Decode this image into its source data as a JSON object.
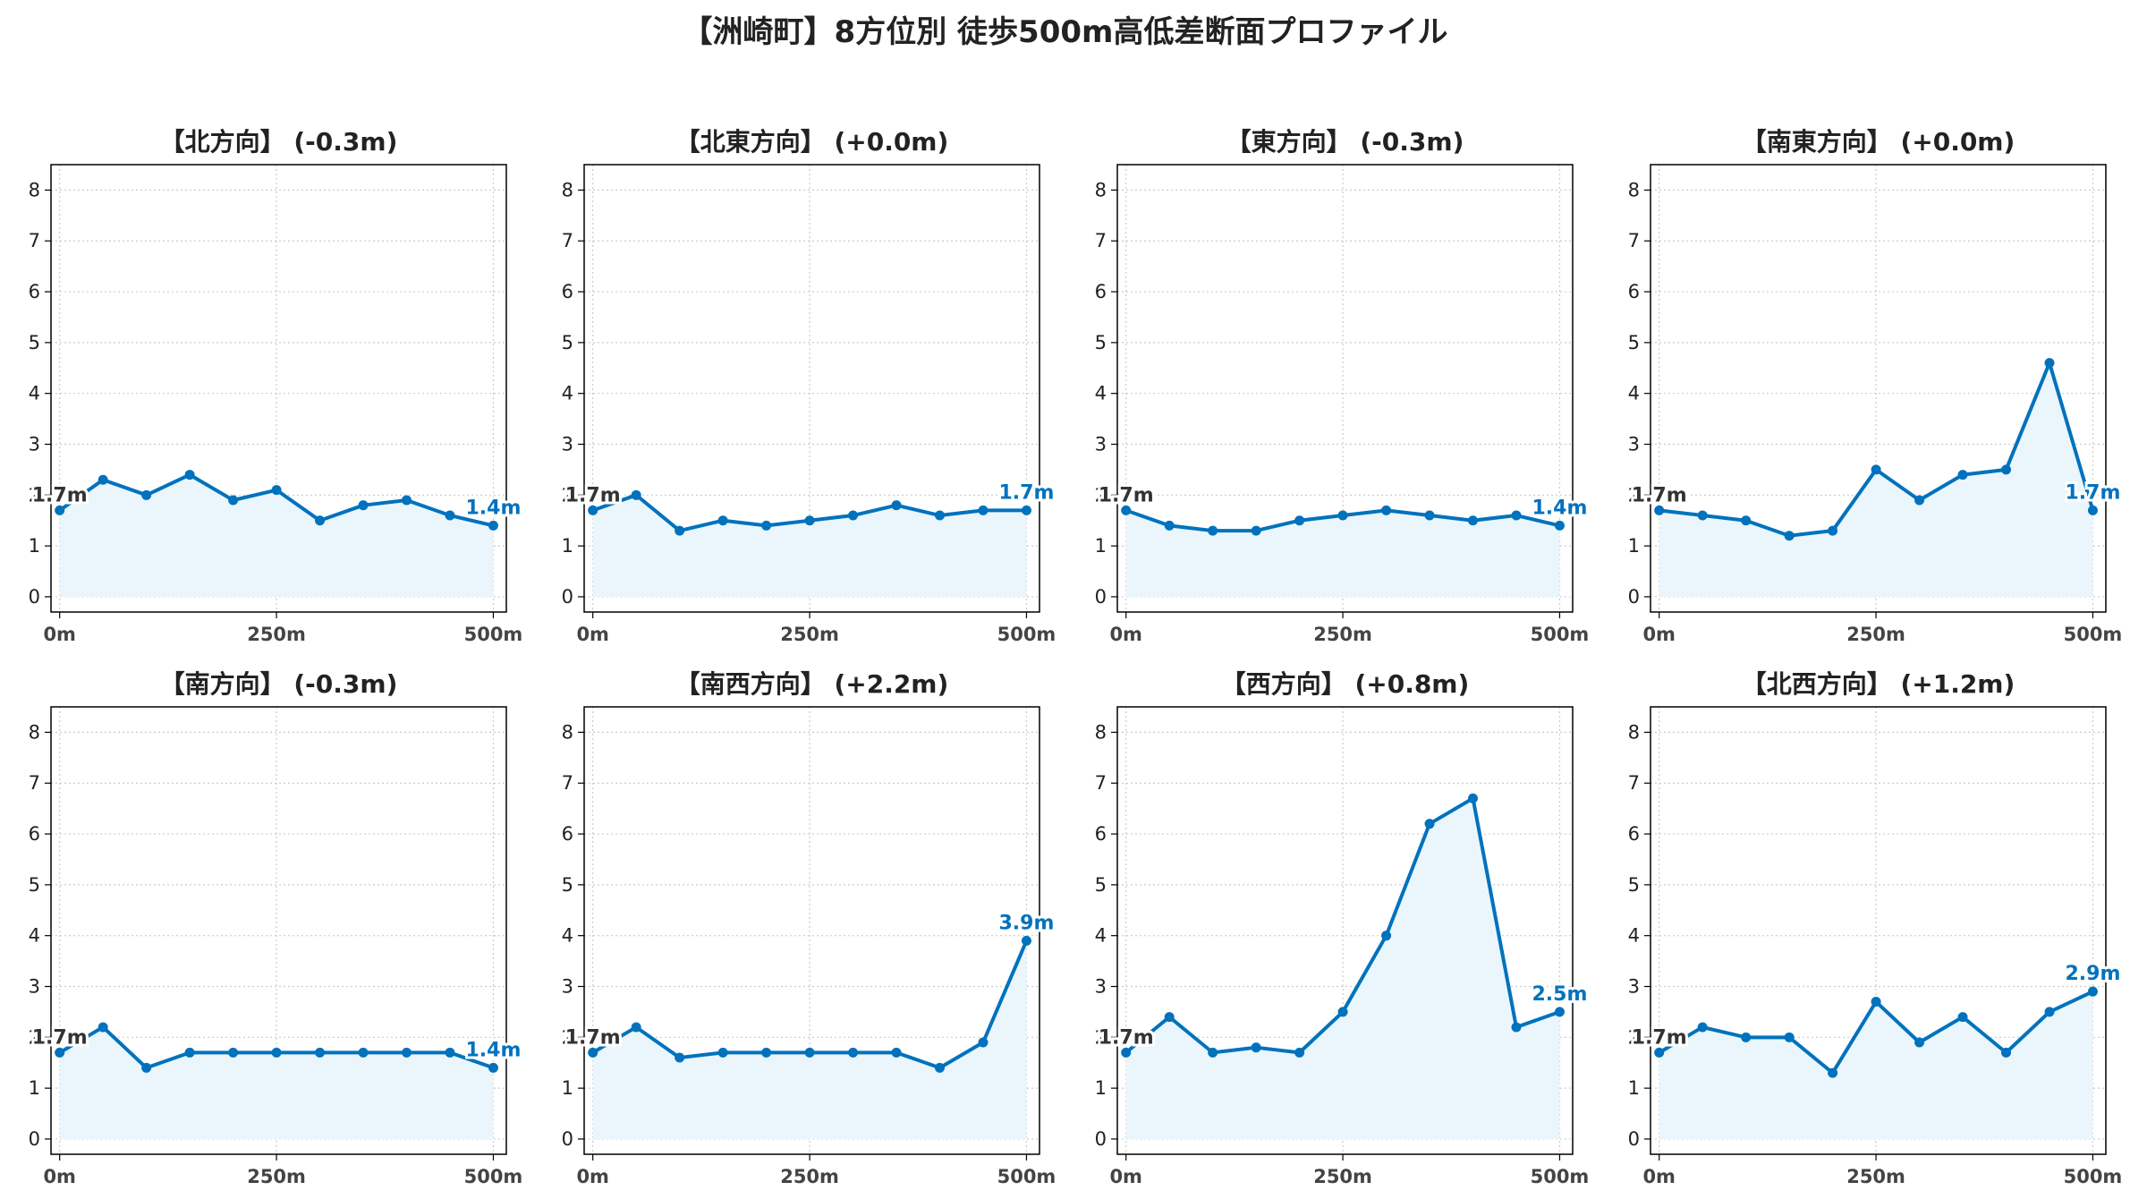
{
  "title": "【洲崎町】8方位別 徒歩500m高低差断面プロファイル",
  "colors": {
    "line": "#0072BD",
    "fill": "#EAF6FC",
    "grid": "#cccccc",
    "start_label": "#333333",
    "end_label": "#0072BD"
  },
  "chart_data": [
    {
      "type": "area",
      "title": "【北方向】 (-0.3m)",
      "x": [
        0,
        50,
        100,
        150,
        200,
        250,
        300,
        350,
        400,
        450,
        500
      ],
      "values": [
        1.7,
        2.3,
        2.0,
        2.4,
        1.9,
        2.1,
        1.5,
        1.8,
        1.9,
        1.6,
        1.4
      ],
      "xticks": [
        0,
        250,
        500
      ],
      "xtick_labels": [
        "0m",
        "250m",
        "500m"
      ],
      "yticks": [
        0,
        1,
        2,
        3,
        4,
        5,
        6,
        7,
        8
      ],
      "ylim": [
        -0.3,
        8.5
      ],
      "xlim": [
        -10,
        515
      ],
      "grid": true,
      "start_label": "1.7m",
      "end_label": "1.4m"
    },
    {
      "type": "area",
      "title": "【北東方向】 (+0.0m)",
      "x": [
        0,
        50,
        100,
        150,
        200,
        250,
        300,
        350,
        400,
        450,
        500
      ],
      "values": [
        1.7,
        2.0,
        1.3,
        1.5,
        1.4,
        1.5,
        1.6,
        1.8,
        1.6,
        1.7,
        1.7
      ],
      "xticks": [
        0,
        250,
        500
      ],
      "xtick_labels": [
        "0m",
        "250m",
        "500m"
      ],
      "yticks": [
        0,
        1,
        2,
        3,
        4,
        5,
        6,
        7,
        8
      ],
      "ylim": [
        -0.3,
        8.5
      ],
      "xlim": [
        -10,
        515
      ],
      "grid": true,
      "start_label": "1.7m",
      "end_label": "1.7m"
    },
    {
      "type": "area",
      "title": "【東方向】 (-0.3m)",
      "x": [
        0,
        50,
        100,
        150,
        200,
        250,
        300,
        350,
        400,
        450,
        500
      ],
      "values": [
        1.7,
        1.4,
        1.3,
        1.3,
        1.5,
        1.6,
        1.7,
        1.6,
        1.5,
        1.6,
        1.4
      ],
      "xticks": [
        0,
        250,
        500
      ],
      "xtick_labels": [
        "0m",
        "250m",
        "500m"
      ],
      "yticks": [
        0,
        1,
        2,
        3,
        4,
        5,
        6,
        7,
        8
      ],
      "ylim": [
        -0.3,
        8.5
      ],
      "xlim": [
        -10,
        515
      ],
      "grid": true,
      "start_label": "1.7m",
      "end_label": "1.4m"
    },
    {
      "type": "area",
      "title": "【南東方向】 (+0.0m)",
      "x": [
        0,
        50,
        100,
        150,
        200,
        250,
        300,
        350,
        400,
        450,
        500
      ],
      "values": [
        1.7,
        1.6,
        1.5,
        1.2,
        1.3,
        2.5,
        1.9,
        2.4,
        2.5,
        4.6,
        1.7
      ],
      "xticks": [
        0,
        250,
        500
      ],
      "xtick_labels": [
        "0m",
        "250m",
        "500m"
      ],
      "yticks": [
        0,
        1,
        2,
        3,
        4,
        5,
        6,
        7,
        8
      ],
      "ylim": [
        -0.3,
        8.5
      ],
      "xlim": [
        -10,
        515
      ],
      "grid": true,
      "start_label": "1.7m",
      "end_label": "1.7m"
    },
    {
      "type": "area",
      "title": "【南方向】 (-0.3m)",
      "x": [
        0,
        50,
        100,
        150,
        200,
        250,
        300,
        350,
        400,
        450,
        500
      ],
      "values": [
        1.7,
        2.2,
        1.4,
        1.7,
        1.7,
        1.7,
        1.7,
        1.7,
        1.7,
        1.7,
        1.4
      ],
      "xticks": [
        0,
        250,
        500
      ],
      "xtick_labels": [
        "0m",
        "250m",
        "500m"
      ],
      "yticks": [
        0,
        1,
        2,
        3,
        4,
        5,
        6,
        7,
        8
      ],
      "ylim": [
        -0.3,
        8.5
      ],
      "xlim": [
        -10,
        515
      ],
      "grid": true,
      "start_label": "1.7m",
      "end_label": "1.4m"
    },
    {
      "type": "area",
      "title": "【南西方向】 (+2.2m)",
      "x": [
        0,
        50,
        100,
        150,
        200,
        250,
        300,
        350,
        400,
        450,
        500
      ],
      "values": [
        1.7,
        2.2,
        1.6,
        1.7,
        1.7,
        1.7,
        1.7,
        1.7,
        1.4,
        1.9,
        3.9
      ],
      "xticks": [
        0,
        250,
        500
      ],
      "xtick_labels": [
        "0m",
        "250m",
        "500m"
      ],
      "yticks": [
        0,
        1,
        2,
        3,
        4,
        5,
        6,
        7,
        8
      ],
      "ylim": [
        -0.3,
        8.5
      ],
      "xlim": [
        -10,
        515
      ],
      "grid": true,
      "start_label": "1.7m",
      "end_label": "3.9m"
    },
    {
      "type": "area",
      "title": "【西方向】 (+0.8m)",
      "x": [
        0,
        50,
        100,
        150,
        200,
        250,
        300,
        350,
        400,
        450,
        500
      ],
      "values": [
        1.7,
        2.4,
        1.7,
        1.8,
        1.7,
        2.5,
        4.0,
        6.2,
        6.7,
        2.2,
        2.5
      ],
      "xticks": [
        0,
        250,
        500
      ],
      "xtick_labels": [
        "0m",
        "250m",
        "500m"
      ],
      "yticks": [
        0,
        1,
        2,
        3,
        4,
        5,
        6,
        7,
        8
      ],
      "ylim": [
        -0.3,
        8.5
      ],
      "xlim": [
        -10,
        515
      ],
      "grid": true,
      "start_label": "1.7m",
      "end_label": "2.5m"
    },
    {
      "type": "area",
      "title": "【北西方向】 (+1.2m)",
      "x": [
        0,
        50,
        100,
        150,
        200,
        250,
        300,
        350,
        400,
        450,
        500
      ],
      "values": [
        1.7,
        2.2,
        2.0,
        2.0,
        1.3,
        2.7,
        1.9,
        2.4,
        1.7,
        2.5,
        2.9
      ],
      "xticks": [
        0,
        250,
        500
      ],
      "xtick_labels": [
        "0m",
        "250m",
        "500m"
      ],
      "yticks": [
        0,
        1,
        2,
        3,
        4,
        5,
        6,
        7,
        8
      ],
      "ylim": [
        -0.3,
        8.5
      ],
      "xlim": [
        -10,
        515
      ],
      "grid": true,
      "start_label": "1.7m",
      "end_label": "2.9m"
    }
  ]
}
